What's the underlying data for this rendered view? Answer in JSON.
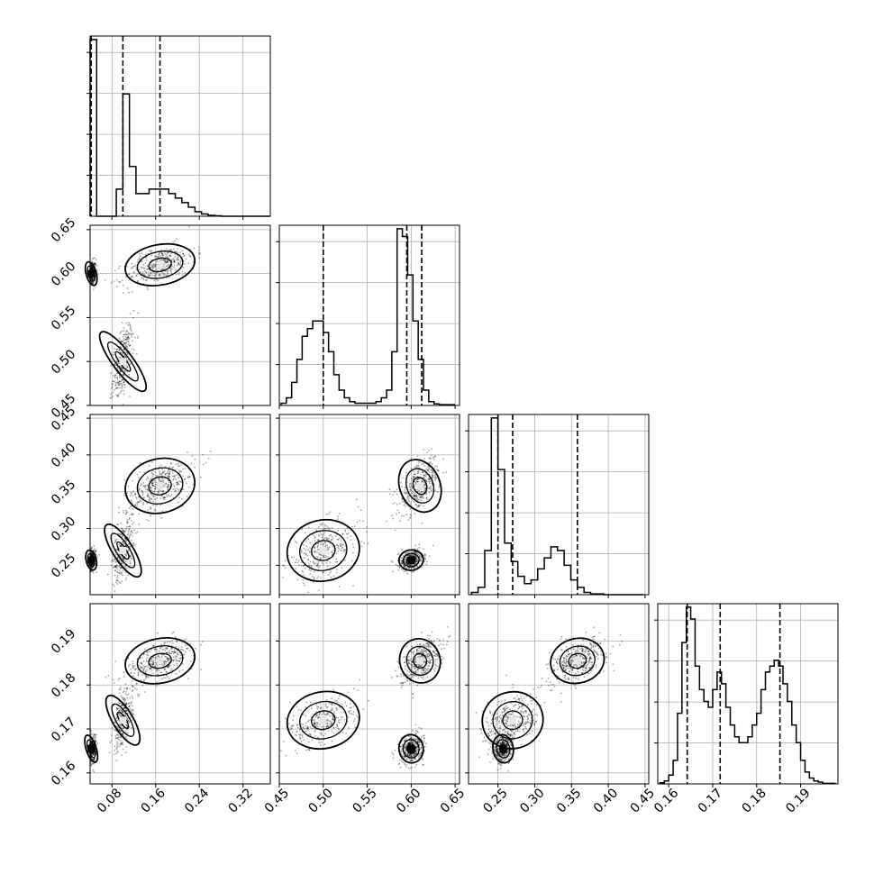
{
  "chart_data": {
    "type": "corner",
    "grid": true,
    "parameters": [
      {
        "range": [
          0.04,
          0.37
        ],
        "ticks": [
          "0.08",
          "0.16",
          "0.24",
          "0.32"
        ],
        "tick_values": [
          0.08,
          0.16,
          0.24,
          0.32
        ],
        "quantiles": [
          0.042,
          0.1,
          0.168
        ]
      },
      {
        "range": [
          0.45,
          0.655
        ],
        "ticks": [
          "0.45",
          "0.50",
          "0.55",
          "0.60",
          "0.65"
        ],
        "tick_values": [
          0.45,
          0.5,
          0.55,
          0.6,
          0.65
        ],
        "quantiles": [
          0.5,
          0.595,
          0.612
        ]
      },
      {
        "range": [
          0.21,
          0.455
        ],
        "ticks": [
          "0.25",
          "0.30",
          "0.35",
          "0.40",
          "0.45"
        ],
        "tick_values": [
          0.25,
          0.3,
          0.35,
          0.4,
          0.45
        ],
        "quantiles": [
          0.25,
          0.27,
          0.358
        ]
      },
      {
        "range": [
          0.1575,
          0.1985
        ],
        "ticks": [
          "0.16",
          "0.17",
          "0.18",
          "0.19"
        ],
        "tick_values": [
          0.16,
          0.17,
          0.18,
          0.19
        ],
        "quantiles": [
          0.1642,
          0.1717,
          0.1853
        ]
      }
    ],
    "histograms": [
      {
        "edges": [
          0.04,
          0.046,
          0.052,
          0.058,
          0.064,
          0.07,
          0.076,
          0.082,
          0.088,
          0.094,
          0.1,
          0.106,
          0.112,
          0.118,
          0.124,
          0.13,
          0.136,
          0.142,
          0.148,
          0.154,
          0.16,
          0.166,
          0.172,
          0.178,
          0.184,
          0.19,
          0.196,
          0.202,
          0.208,
          0.214,
          0.22,
          0.226,
          0.232,
          0.238,
          0.244,
          0.25,
          0.256,
          0.262,
          0.268,
          0.274,
          0.28,
          0.286,
          0.292,
          0.298,
          0.304,
          0.31,
          0.316,
          0.322,
          0.328,
          0.334,
          0.34,
          0.346,
          0.352,
          0.358,
          0.364,
          0.37
        ],
        "counts": [
          39,
          39,
          0,
          0,
          0,
          0,
          0,
          0,
          6,
          6,
          27,
          27,
          11,
          11,
          5,
          5,
          5,
          5,
          6,
          6,
          6,
          6,
          6,
          6,
          5,
          5,
          4,
          4,
          3,
          3,
          2,
          2,
          1,
          1,
          0.5,
          0.5,
          0.2,
          0.2,
          0.1,
          0.1,
          0,
          0,
          0,
          0,
          0,
          0,
          0,
          0,
          0,
          0,
          0,
          0,
          0,
          0,
          0
        ]
      },
      {
        "edges": [
          0.452,
          0.458,
          0.464,
          0.47,
          0.476,
          0.482,
          0.488,
          0.494,
          0.5,
          0.506,
          0.512,
          0.518,
          0.524,
          0.53,
          0.536,
          0.542,
          0.548,
          0.554,
          0.56,
          0.566,
          0.572,
          0.578,
          0.584,
          0.59,
          0.596,
          0.602,
          0.608,
          0.614,
          0.62,
          0.626,
          0.632,
          0.638,
          0.644,
          0.65
        ],
        "counts": [
          0.3,
          1,
          3,
          6,
          9,
          10,
          11,
          11,
          9.5,
          7,
          4,
          2,
          1,
          0.5,
          0.3,
          0.3,
          0.3,
          0.3,
          0.5,
          1,
          2,
          7,
          23,
          22,
          17,
          11,
          6,
          2,
          0.5,
          0.2,
          0.1,
          0.1,
          0.1
        ]
      },
      {
        "edges": [
          0.214,
          0.223,
          0.232,
          0.241,
          0.25,
          0.259,
          0.268,
          0.277,
          0.286,
          0.295,
          0.304,
          0.313,
          0.322,
          0.331,
          0.34,
          0.349,
          0.358,
          0.367,
          0.376,
          0.385,
          0.394,
          0.403,
          0.412,
          0.421,
          0.43,
          0.439,
          0.448
        ],
        "counts": [
          0.3,
          1,
          6,
          24,
          17,
          7,
          4.5,
          2.5,
          1.5,
          2,
          3.5,
          5,
          6.5,
          6,
          4,
          2,
          1,
          0.3,
          0.1,
          0.1,
          0,
          0,
          0,
          0,
          0,
          0
        ]
      },
      {
        "edges": [
          0.158,
          0.159,
          0.16,
          0.161,
          0.162,
          0.163,
          0.164,
          0.165,
          0.166,
          0.167,
          0.168,
          0.169,
          0.17,
          0.171,
          0.172,
          0.173,
          0.174,
          0.175,
          0.176,
          0.177,
          0.178,
          0.179,
          0.18,
          0.181,
          0.182,
          0.183,
          0.184,
          0.185,
          0.186,
          0.187,
          0.188,
          0.189,
          0.19,
          0.191,
          0.192,
          0.193,
          0.194,
          0.195,
          0.196,
          0.197,
          0.198
        ],
        "counts": [
          0.2,
          0.5,
          1.5,
          4,
          12,
          24,
          30,
          28,
          20,
          16,
          14,
          13,
          16,
          19,
          17,
          13,
          10,
          8,
          7,
          7,
          8,
          10,
          12,
          16,
          19,
          20,
          21,
          20,
          17,
          14,
          10,
          7,
          4,
          2,
          1,
          0.5,
          0.3,
          0.1,
          0.1,
          0.1
        ]
      }
    ],
    "modes": [
      {
        "means": [
          0.042,
          0.6,
          0.257,
          0.1655
        ],
        "sds": [
          0.004,
          0.006,
          0.006,
          0.0014
        ],
        "weight": 0.35
      },
      {
        "means": [
          0.1,
          0.5,
          0.27,
          0.172
        ],
        "sds": [
          0.008,
          0.018,
          0.018,
          0.0028
        ],
        "weight": 0.3
      },
      {
        "means": [
          0.168,
          0.61,
          0.358,
          0.1855
        ],
        "sds": [
          0.028,
          0.01,
          0.016,
          0.0022
        ],
        "weight": 0.35
      }
    ]
  }
}
